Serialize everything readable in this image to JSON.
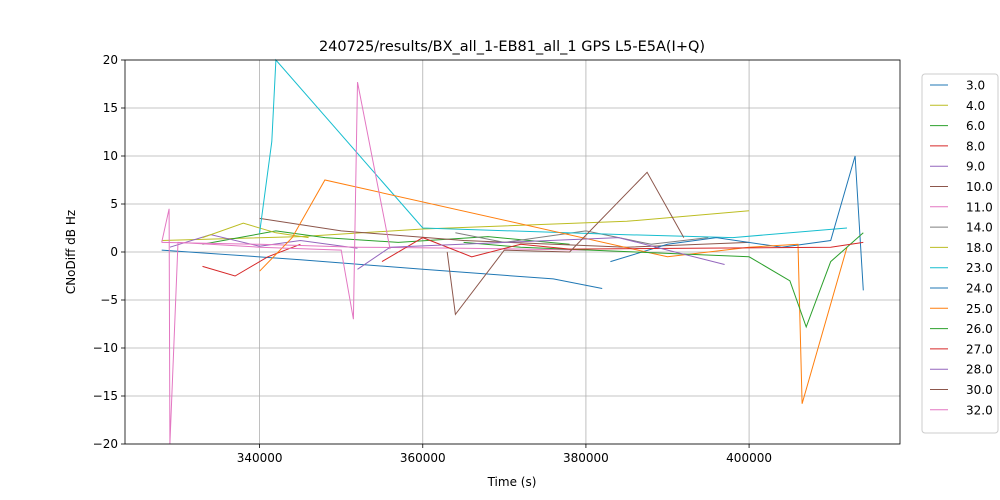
{
  "chart_data": {
    "type": "line",
    "title": "240725/results/BX_all_1-EB81_all_1 GPS L5-E5A(I+Q)",
    "xlabel": "Time (s)",
    "ylabel": "CNoDiff dB Hz",
    "xlim": [
      323500,
      418500
    ],
    "ylim": [
      -20,
      20
    ],
    "xticks": [
      340000,
      360000,
      380000,
      400000
    ],
    "xtick_labels": [
      "340000",
      "360000",
      "380000",
      "400000"
    ],
    "yticks": [
      -20,
      -15,
      -10,
      -5,
      0,
      5,
      10,
      15,
      20
    ],
    "ytick_labels": [
      "−20",
      "−15",
      "−10",
      "−5",
      "0",
      "5",
      "10",
      "15",
      "20"
    ],
    "grid": true,
    "legend_position": "right-outside",
    "series": [
      {
        "name": "3.0",
        "color": "#1f77b4",
        "x": [
          328000,
          345000,
          360000,
          376000,
          382000
        ],
        "y": [
          0.2,
          -0.8,
          -1.8,
          -2.8,
          -3.8
        ]
      },
      {
        "name": "4.0",
        "color": "#bcbd22",
        "x": [
          328000,
          345000,
          360000,
          385000,
          400000
        ],
        "y": [
          1.2,
          1.6,
          2.4,
          3.2,
          4.3
        ]
      },
      {
        "name": "6.0",
        "color": "#2ca02c",
        "x": [
          333000,
          342000,
          348000,
          357000,
          368000,
          378000
        ],
        "y": [
          0.8,
          2.2,
          1.5,
          1.0,
          1.6,
          0.8
        ]
      },
      {
        "name": "8.0",
        "color": "#d62728",
        "x": [
          333000,
          337000,
          341000,
          345000
        ],
        "y": [
          -1.5,
          -2.5,
          -0.5,
          0.8
        ]
      },
      {
        "name": "9.0",
        "color": "#9467bd",
        "x": [
          329000,
          334000,
          340000,
          345000,
          352000
        ],
        "y": [
          0.5,
          1.8,
          0.6,
          1.2,
          0.4
        ]
      },
      {
        "name": "10.0",
        "color": "#8c564b",
        "x": [
          340000,
          350000,
          365000,
          385000,
          400000
        ],
        "y": [
          3.5,
          2.2,
          1.2,
          0.5,
          1.0
        ]
      },
      {
        "name": "11.0",
        "color": "#e377c2",
        "x": [
          328000,
          340000,
          352000,
          365000,
          380000
        ],
        "y": [
          1.0,
          0.8,
          0.5,
          0.4,
          0.2
        ]
      },
      {
        "name": "14.0",
        "color": "#7f7f7f",
        "x": [
          364000,
          370000,
          380000,
          388000,
          395000
        ],
        "y": [
          2.0,
          1.0,
          2.2,
          0.8,
          1.5
        ]
      },
      {
        "name": "18.0",
        "color": "#bcbd22",
        "x": [
          333000,
          338000,
          342000,
          346000
        ],
        "y": [
          1.5,
          3.0,
          2.0,
          1.5
        ]
      },
      {
        "name": "23.0",
        "color": "#17becf",
        "x": [
          340000,
          341500,
          342000,
          360000,
          385000,
          398000,
          412000
        ],
        "y": [
          2.0,
          11.5,
          20.0,
          2.5,
          1.8,
          1.5,
          2.5
        ]
      },
      {
        "name": "24.0",
        "color": "#1f77b4",
        "x": [
          383000,
          390000,
          396000,
          404000,
          410000,
          413000,
          414000
        ],
        "y": [
          -1.0,
          0.8,
          1.5,
          0.5,
          1.2,
          10.0,
          -4.0
        ]
      },
      {
        "name": "25.0",
        "color": "#ff7f0e",
        "x": [
          340000,
          344000,
          348000,
          390000,
          400000,
          406000,
          406500,
          412000
        ],
        "y": [
          -2.0,
          1.5,
          7.5,
          -0.5,
          0.5,
          0.8,
          -15.8,
          0.5
        ]
      },
      {
        "name": "26.0",
        "color": "#2ca02c",
        "x": [
          365000,
          372000,
          400000,
          405000,
          407000,
          410000,
          414000
        ],
        "y": [
          1.0,
          0.5,
          -0.5,
          -3.0,
          -7.8,
          -1.0,
          2.0
        ]
      },
      {
        "name": "27.0",
        "color": "#d62728",
        "x": [
          355000,
          360000,
          366000,
          372000,
          378000,
          410000,
          414000
        ],
        "y": [
          -1.0,
          1.5,
          -0.5,
          0.8,
          0.3,
          0.5,
          1.0
        ]
      },
      {
        "name": "28.0",
        "color": "#9467bd",
        "x": [
          352000,
          356000,
          384000,
          390000,
          397000
        ],
        "y": [
          -1.8,
          0.5,
          1.5,
          0.2,
          -1.3
        ]
      },
      {
        "name": "30.0",
        "color": "#8c564b",
        "x": [
          363000,
          364000,
          370000,
          378000,
          387500,
          392000
        ],
        "y": [
          0.0,
          -6.5,
          0.2,
          0.0,
          8.3,
          1.5
        ]
      },
      {
        "name": "32.0",
        "color": "#e377c2",
        "x": [
          328000,
          328900,
          329000,
          330000,
          340000,
          350000,
          351500,
          352000,
          356000
        ],
        "y": [
          1.0,
          4.5,
          -20.0,
          1.0,
          0.5,
          0.2,
          -7.0,
          17.7,
          0.3
        ]
      }
    ]
  }
}
